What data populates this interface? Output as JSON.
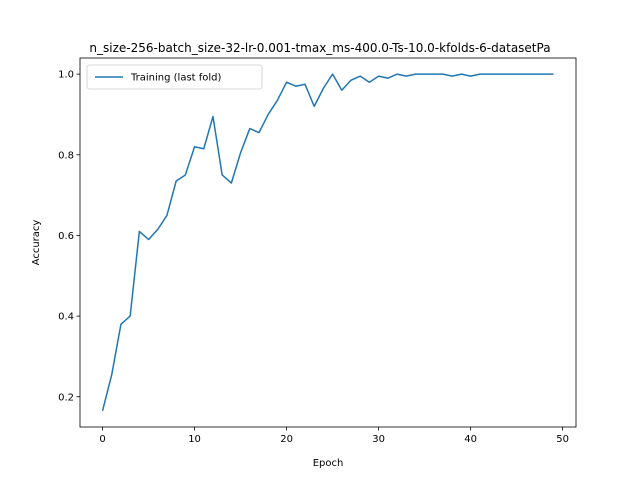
{
  "chart_data": {
    "type": "line",
    "title": "n_size-256-batch_size-32-lr-0.001-tmax_ms-400.0-Ts-10.0-kfolds-6-datasetPa",
    "xlabel": "Epoch",
    "ylabel": "Accuracy",
    "xlim": [
      -2.45,
      51.45
    ],
    "ylim": [
      0.125,
      1.04
    ],
    "xticks": [
      0,
      10,
      20,
      30,
      40,
      50
    ],
    "yticks": [
      0.2,
      0.4,
      0.6,
      0.8,
      1.0
    ],
    "xtick_labels": [
      "0",
      "10",
      "20",
      "30",
      "40",
      "50"
    ],
    "ytick_labels": [
      "0.2",
      "0.4",
      "0.6",
      "0.8",
      "1.0"
    ],
    "grid": false,
    "legend_position": "top-left",
    "series": [
      {
        "name": "Training (last fold)",
        "color": "#1f77b4",
        "x": [
          0,
          1,
          2,
          3,
          4,
          5,
          6,
          7,
          8,
          9,
          10,
          11,
          12,
          13,
          14,
          15,
          16,
          17,
          18,
          19,
          20,
          21,
          22,
          23,
          24,
          25,
          26,
          27,
          28,
          29,
          30,
          31,
          32,
          33,
          34,
          35,
          36,
          37,
          38,
          39,
          40,
          41,
          42,
          43,
          44,
          45,
          46,
          47,
          48,
          49
        ],
        "y": [
          0.165,
          0.255,
          0.38,
          0.4,
          0.61,
          0.59,
          0.615,
          0.65,
          0.735,
          0.75,
          0.82,
          0.815,
          0.895,
          0.75,
          0.73,
          0.805,
          0.865,
          0.855,
          0.9,
          0.935,
          0.98,
          0.97,
          0.975,
          0.92,
          0.965,
          1.0,
          0.96,
          0.985,
          0.995,
          0.98,
          0.995,
          0.99,
          1.0,
          0.995,
          1.0,
          1.0,
          1.0,
          1.0,
          0.995,
          1.0,
          0.995,
          1.0,
          1.0,
          1.0,
          1.0,
          1.0,
          1.0,
          1.0,
          1.0,
          1.0
        ]
      }
    ]
  }
}
